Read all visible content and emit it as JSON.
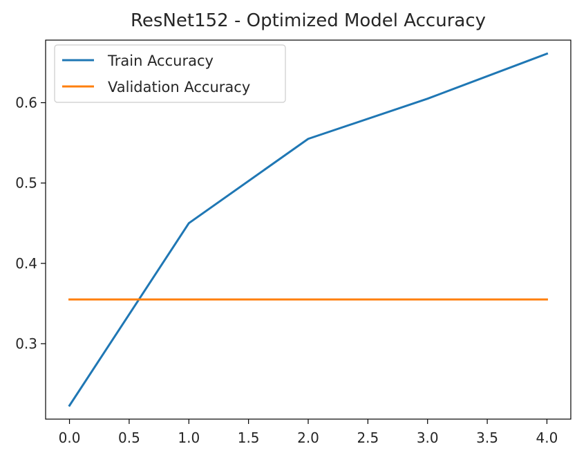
{
  "chart_data": {
    "type": "line",
    "title": "ResNet152 - Optimized Model Accuracy",
    "xlabel": "",
    "ylabel": "",
    "x": [
      0,
      1,
      2,
      3,
      4
    ],
    "series": [
      {
        "name": "Train Accuracy",
        "color": "#1f77b4",
        "values": [
          0.223,
          0.45,
          0.555,
          0.605,
          0.661
        ]
      },
      {
        "name": "Validation Accuracy",
        "color": "#ff7f0e",
        "values": [
          0.355,
          0.355,
          0.355,
          0.355,
          0.355
        ]
      }
    ],
    "xlim": [
      -0.2,
      4.2
    ],
    "ylim": [
      0.2061,
      0.6779
    ],
    "xticks": [
      0.0,
      0.5,
      1.0,
      1.5,
      2.0,
      2.5,
      3.0,
      3.5,
      4.0
    ],
    "xtick_labels": [
      "0.0",
      "0.5",
      "1.0",
      "1.5",
      "2.0",
      "2.5",
      "3.0",
      "3.5",
      "4.0"
    ],
    "yticks": [
      0.3,
      0.4,
      0.5,
      0.6
    ],
    "ytick_labels": [
      "0.3",
      "0.4",
      "0.5",
      "0.6"
    ],
    "grid": false,
    "legend_position": "top-left"
  }
}
